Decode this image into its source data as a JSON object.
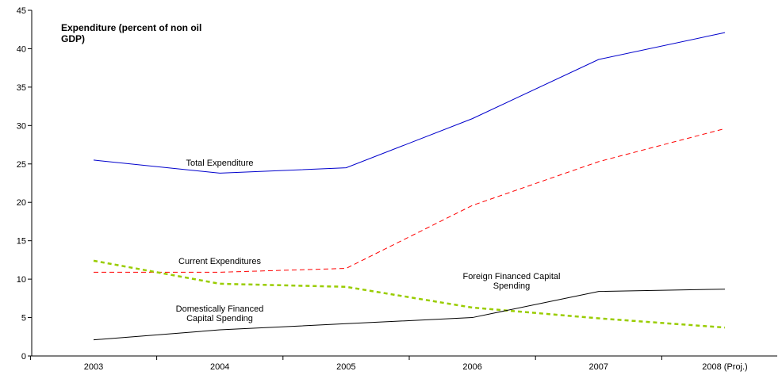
{
  "chart_data": {
    "type": "line",
    "title_lines": [
      "Expenditure (percent of non oil",
      "GDP)"
    ],
    "categories": [
      "2003",
      "2004",
      "2005",
      "2006",
      "2007",
      "2008 (Proj.)"
    ],
    "ylim": [
      0,
      45
    ],
    "yticks": [
      0,
      5,
      10,
      15,
      20,
      25,
      30,
      35,
      40,
      45
    ],
    "grid": false,
    "series": [
      {
        "key": "total",
        "values": [
          25.5,
          23.8,
          24.5,
          30.9,
          38.6,
          42.1
        ],
        "color": "#0000cc",
        "dash": "none",
        "width": 1
      },
      {
        "key": "current",
        "values": [
          10.9,
          10.9,
          11.4,
          19.6,
          25.3,
          29.6
        ],
        "color": "#ff0000",
        "dash": "6,4",
        "width": 1
      },
      {
        "key": "foreign",
        "values": [
          12.4,
          9.4,
          9.0,
          6.3,
          4.9,
          3.7
        ],
        "color": "#99cc00",
        "dash": "5,4",
        "width": 2.5
      },
      {
        "key": "domestic",
        "values": [
          2.1,
          3.4,
          4.2,
          5.0,
          8.4,
          8.7
        ],
        "color": "#000000",
        "dash": "none",
        "width": 1
      }
    ],
    "annotations": [
      {
        "key": "total-label",
        "lines": [
          "Total Expenditure"
        ]
      },
      {
        "key": "current-label",
        "lines": [
          "Current Expenditures"
        ]
      },
      {
        "key": "foreign-label",
        "lines": [
          "Foreign Financed Capital",
          "Spending"
        ]
      },
      {
        "key": "domestic-label",
        "lines": [
          "Domestically Financed",
          "Capital Spending"
        ]
      }
    ]
  }
}
